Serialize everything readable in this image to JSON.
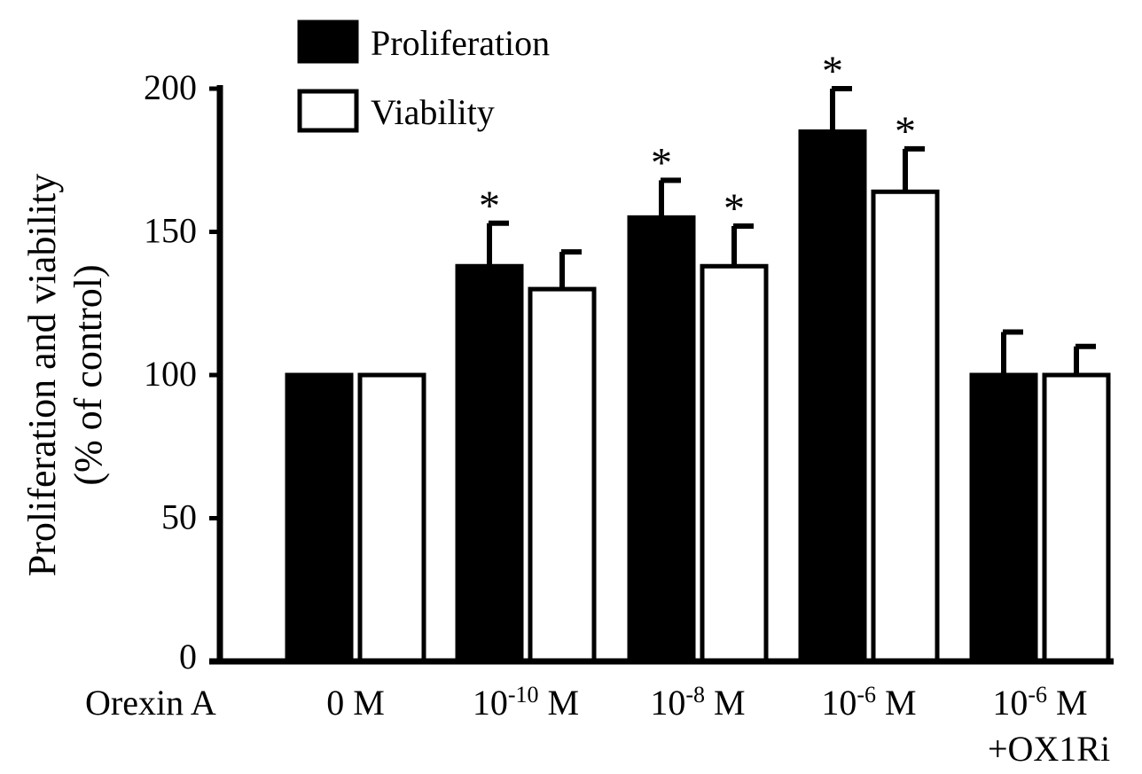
{
  "chart_data": {
    "type": "bar",
    "title": "",
    "xlabel_prefix": "Orexin A",
    "ylabel_line1": "Proliferation and viability",
    "ylabel_line2": "(% of control)",
    "ylim": [
      0,
      200
    ],
    "yticks": [
      0,
      50,
      100,
      150,
      200
    ],
    "grid": false,
    "legend_placement": "top-left",
    "categories": [
      {
        "base": "0 M",
        "exp": "",
        "unit": "",
        "extra": ""
      },
      {
        "base": "10",
        "exp": "-10",
        "unit": " M",
        "extra": ""
      },
      {
        "base": "10",
        "exp": "-8",
        "unit": " M",
        "extra": ""
      },
      {
        "base": "10",
        "exp": "-6",
        "unit": " M",
        "extra": ""
      },
      {
        "base": "10",
        "exp": "-6",
        "unit": " M",
        "extra": "+OX1Ri"
      }
    ],
    "series": [
      {
        "name": "Proliferation",
        "color": "#000000",
        "values": [
          100,
          138,
          155,
          185,
          100
        ],
        "error": [
          0,
          15,
          13,
          15,
          15
        ],
        "significant": [
          false,
          true,
          true,
          true,
          false
        ]
      },
      {
        "name": "Viability",
        "color": "#ffffff",
        "values": [
          100,
          130,
          138,
          164,
          100
        ],
        "error": [
          0,
          13,
          14,
          15,
          10
        ],
        "significant": [
          false,
          false,
          true,
          true,
          false
        ]
      }
    ],
    "significance_marker": "*"
  }
}
